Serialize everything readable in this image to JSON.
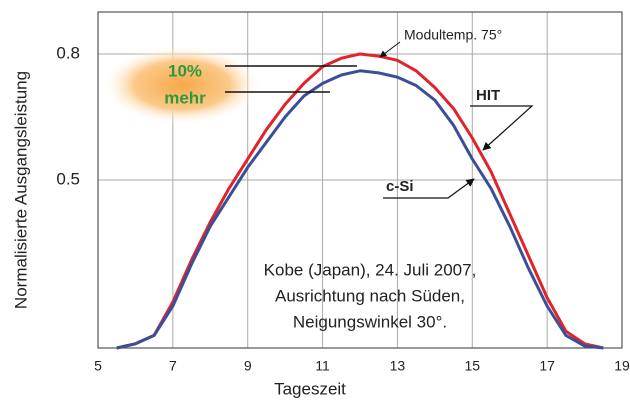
{
  "chart_data": {
    "type": "line",
    "x_label": "Tageszeit",
    "y_label": "Normalisierte Ausgangsleistung",
    "x": [
      5.5,
      6,
      6.5,
      7,
      7.5,
      8,
      8.5,
      9,
      9.5,
      10,
      10.5,
      11,
      11.5,
      12,
      12.5,
      13,
      13.5,
      14,
      14.5,
      15,
      15.5,
      16,
      16.5,
      17,
      17.5,
      18,
      18.5
    ],
    "series": [
      {
        "name": "HIT",
        "color": "#e0242a",
        "values": [
          0.1,
          0.11,
          0.13,
          0.21,
          0.31,
          0.4,
          0.48,
          0.55,
          0.62,
          0.68,
          0.73,
          0.77,
          0.79,
          0.8,
          0.795,
          0.785,
          0.76,
          0.72,
          0.67,
          0.6,
          0.52,
          0.42,
          0.32,
          0.22,
          0.14,
          0.11,
          0.1
        ]
      },
      {
        "name": "c-Si",
        "color": "#3a4f9a",
        "values": [
          0.1,
          0.11,
          0.13,
          0.2,
          0.3,
          0.39,
          0.46,
          0.53,
          0.59,
          0.65,
          0.7,
          0.73,
          0.75,
          0.76,
          0.755,
          0.745,
          0.725,
          0.69,
          0.63,
          0.55,
          0.48,
          0.39,
          0.29,
          0.2,
          0.13,
          0.105,
          0.1
        ]
      }
    ],
    "xlim": [
      5,
      19
    ],
    "xticks": [
      5,
      7,
      9,
      11,
      13,
      15,
      17,
      19
    ],
    "ylim": [
      0.1,
      0.9
    ],
    "yticks": [
      0.5,
      0.8
    ],
    "grid": true,
    "annotations": {
      "temp": "Modultemp. 75°",
      "gain_1": "10%",
      "gain_2": "mehr",
      "note": [
        "Kobe (Japan), 24. Juli 2007,",
        "Ausrichtung nach Süden,",
        "Neigungswinkel 30°."
      ]
    }
  }
}
